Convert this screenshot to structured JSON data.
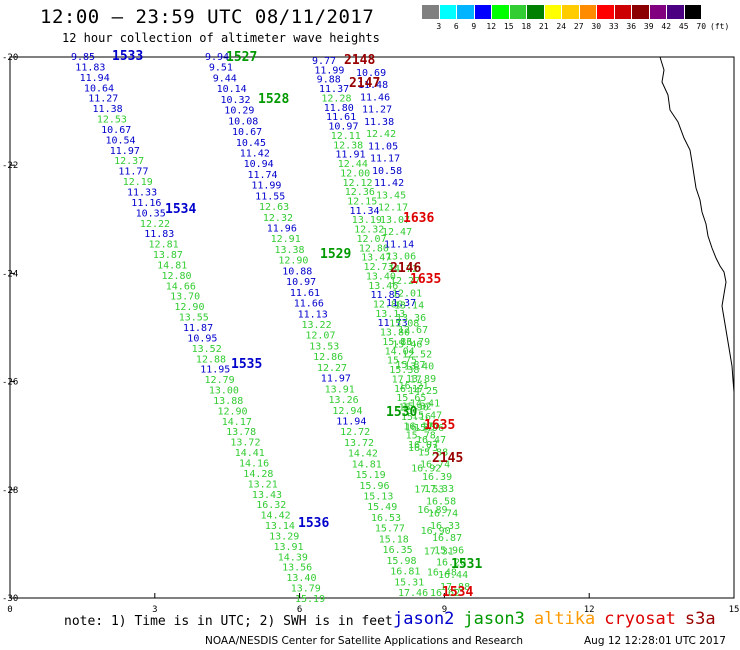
{
  "header": {
    "title": "12:00 – 23:59 UTC 08/11/2017",
    "subtitle": "12 hour collection of altimeter wave heights"
  },
  "colorbar": {
    "labels": [
      "3",
      "6",
      "9",
      "12",
      "15",
      "18",
      "21",
      "24",
      "27",
      "30",
      "33",
      "36",
      "39",
      "42",
      "45",
      "70",
      "(ft)"
    ],
    "colors": [
      "#808080",
      "#00ffff",
      "#00b4ff",
      "#0000ff",
      "#00ff00",
      "#32cd32",
      "#008000",
      "#ffff00",
      "#ffcc00",
      "#ff8c00",
      "#ff0000",
      "#cc0000",
      "#8b0000",
      "#800080",
      "#4b0082",
      "#000000"
    ]
  },
  "axes": {
    "x_ticks": [
      "0",
      "3",
      "6",
      "9",
      "12",
      "15"
    ],
    "y_ticks": [
      "-20",
      "-22",
      "-24",
      "-26",
      "-28",
      "-30"
    ]
  },
  "note": "note: 1) Time is in UTC; 2) SWH is in feet",
  "legend": [
    {
      "name": "jason2",
      "color": "#0000cc"
    },
    {
      "name": "jason3",
      "color": "#009900"
    },
    {
      "name": "altika",
      "color": "#ff9900"
    },
    {
      "name": "cryosat",
      "color": "#dd0000"
    },
    {
      "name": "s3a",
      "color": "#990000"
    }
  ],
  "footer": "NOAA/NESDIS Center for Satellite Applications and Research",
  "stamp": "Aug 12 12:28:01 UTC 2017",
  "tracks": {
    "t1": [
      "9.85",
      "11.83",
      "11.94",
      "10.64",
      "11.27",
      "11.38",
      "12.53",
      "10.67",
      "10.54",
      "11.97",
      "12.37",
      "11.77",
      "12.19",
      "11.33",
      "11.16",
      "10.35",
      "12.22",
      "11.83",
      "12.81",
      "13.87",
      "14.81",
      "12.80",
      "14.66",
      "13.70",
      "12.90",
      "13.55",
      "11.87",
      "10.95",
      "13.52",
      "12.88",
      "11.95",
      "12.79",
      "13.00",
      "13.88",
      "12.90",
      "14.17",
      "13.78",
      "13.72",
      "14.41",
      "14.16",
      "14.28",
      "13.21",
      "13.43",
      "16.32",
      "14.42",
      "13.14",
      "13.29",
      "13.91",
      "14.39",
      "13.56",
      "13.40",
      "13.79",
      "15.19"
    ],
    "t2": [
      "9.94",
      "9.51",
      "9.44",
      "10.14",
      "10.32",
      "10.29",
      "10.08",
      "10.67",
      "10.45",
      "11.42",
      "10.94",
      "11.74",
      "11.99",
      "11.55",
      "12.63",
      "12.32",
      "11.96",
      "12.91",
      "13.38",
      "12.90",
      "10.88",
      "10.97",
      "11.61",
      "11.66",
      "11.13",
      "13.22",
      "12.07",
      "13.53",
      "12.86",
      "12.27",
      "11.97",
      "13.91",
      "13.26",
      "12.94",
      "11.94",
      "12.72",
      "13.72",
      "14.42",
      "14.81",
      "15.19",
      "15.96",
      "15.13",
      "15.49",
      "16.53",
      "15.77",
      "15.18",
      "16.35",
      "15.98",
      "16.81",
      "15.31",
      "17.46"
    ],
    "t3": [
      "9.77",
      "11.99",
      "9.88",
      "11.37",
      "12.28",
      "11.80",
      "11.61",
      "10.97",
      "12.11",
      "12.38",
      "11.91",
      "12.44",
      "12.00",
      "12.12",
      "12.36",
      "12.15",
      "11.34",
      "13.19",
      "12.32",
      "12.07",
      "12.80",
      "13.47",
      "12.73",
      "13.40",
      "13.46",
      "11.85",
      "12.80",
      "13.13",
      "11.73",
      "13.80",
      "15.86",
      "14.04",
      "15.75",
      "15.38",
      "17.17",
      "16.17",
      "15.65",
      "15.90",
      "15.16",
      "16.17",
      "15.78",
      "16.07"
    ],
    "t4": [
      "10.69",
      "11.48",
      "11.46",
      "11.27",
      "11.38",
      "12.42",
      "11.05",
      "11.17",
      "10.58",
      "11.42",
      "13.45",
      "12.17",
      "13.07",
      "12.47",
      "11.14",
      "13.06",
      "14.72",
      "12.27",
      "12.01",
      "13.14",
      "13.36",
      "12.67",
      "13.79",
      "12.52",
      "13.40",
      "13.89",
      "14.25",
      "14.41",
      "15.47",
      "15.96",
      "16.47",
      "15.88",
      "16.74",
      "16.39",
      "17.33",
      "16.58",
      "16.74",
      "16.33",
      "16.87",
      "15.96",
      "16.20",
      "16.44",
      "17.88"
    ],
    "t5": [
      "11.37",
      "15.08",
      "15.46",
      "15.87",
      "16.21",
      "15.32",
      "16.35",
      "16.73",
      "16.92",
      "17.53",
      "16.89",
      "16.90",
      "17.31",
      "16.48",
      "16.62"
    ]
  },
  "passes": [
    {
      "label": "1533",
      "sat": "jason2"
    },
    {
      "label": "1527",
      "sat": "jason3"
    },
    {
      "label": "2148",
      "sat": "s3a"
    },
    {
      "label": "2147",
      "sat": "s3a"
    },
    {
      "label": "1528",
      "sat": "jason3"
    },
    {
      "label": "1534",
      "sat": "jason2"
    },
    {
      "label": "1636",
      "sat": "cryosat"
    },
    {
      "label": "1529",
      "sat": "jason3"
    },
    {
      "label": "2146",
      "sat": "s3a"
    },
    {
      "label": "1635",
      "sat": "cryosat"
    },
    {
      "label": "1535",
      "sat": "jason2"
    },
    {
      "label": "1530",
      "sat": "jason3"
    },
    {
      "label": "1635",
      "sat": "cryosat"
    },
    {
      "label": "2145",
      "sat": "s3a"
    },
    {
      "label": "1536",
      "sat": "jason2"
    },
    {
      "label": "1531",
      "sat": "jason3"
    },
    {
      "label": "1534",
      "sat": "cryosat"
    }
  ]
}
